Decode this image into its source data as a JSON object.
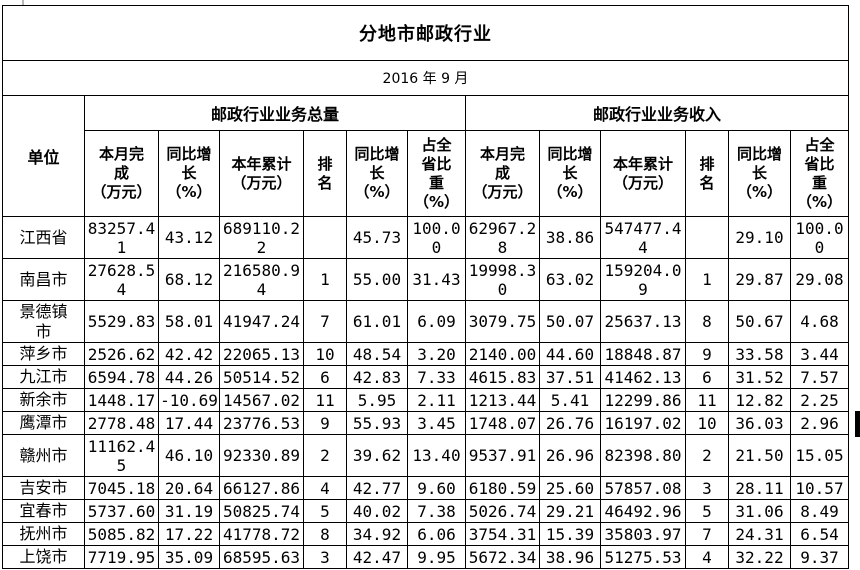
{
  "table": {
    "title": "分地市邮政行业",
    "period": "2016 年 9 月",
    "unit_column_header": "单位",
    "group_headers": [
      "邮政行业业务总量",
      "邮政行业业务收入"
    ],
    "sub_headers": [
      "本月完\n成\n（万元）",
      "同比增\n长\n（%）",
      "本年累计\n（万元）",
      "排\n名",
      "同比增\n长\n（%）",
      "占全\n省比\n重\n（%）"
    ],
    "rows": [
      {
        "name": "江西省",
        "volume": [
          "83257.41",
          "43.12",
          "689110.22",
          "",
          "45.73",
          "100.00"
        ],
        "revenue": [
          "62967.28",
          "38.86",
          "547477.44",
          "",
          "29.10",
          "100.00"
        ]
      },
      {
        "name": "南昌市",
        "volume": [
          "27628.54",
          "68.12",
          "216580.94",
          "1",
          "55.00",
          "31.43"
        ],
        "revenue": [
          "19998.30",
          "63.02",
          "159204.09",
          "1",
          "29.87",
          "29.08"
        ]
      },
      {
        "name": "景德镇市",
        "volume": [
          "5529.83",
          "58.01",
          "41947.24",
          "7",
          "61.01",
          "6.09"
        ],
        "revenue": [
          "3079.75",
          "50.07",
          "25637.13",
          "8",
          "50.67",
          "4.68"
        ]
      },
      {
        "name": "萍乡市",
        "volume": [
          "2526.62",
          "42.42",
          "22065.13",
          "10",
          "48.54",
          "3.20"
        ],
        "revenue": [
          "2140.00",
          "44.60",
          "18848.87",
          "9",
          "33.58",
          "3.44"
        ]
      },
      {
        "name": "九江市",
        "volume": [
          "6594.78",
          "44.26",
          "50514.52",
          "6",
          "42.83",
          "7.33"
        ],
        "revenue": [
          "4615.83",
          "37.51",
          "41462.13",
          "6",
          "31.52",
          "7.57"
        ]
      },
      {
        "name": "新余市",
        "volume": [
          "1448.17",
          "-10.69",
          "14567.02",
          "11",
          "5.95",
          "2.11"
        ],
        "revenue": [
          "1213.44",
          "5.41",
          "12299.86",
          "11",
          "12.82",
          "2.25"
        ]
      },
      {
        "name": "鹰潭市",
        "volume": [
          "2778.48",
          "17.44",
          "23776.53",
          "9",
          "55.93",
          "3.45"
        ],
        "revenue": [
          "1748.07",
          "26.76",
          "16197.02",
          "10",
          "36.03",
          "2.96"
        ]
      },
      {
        "name": "赣州市",
        "volume": [
          "11162.45",
          "46.10",
          "92330.89",
          "2",
          "39.62",
          "13.40"
        ],
        "revenue": [
          "9537.91",
          "26.96",
          "82398.80",
          "2",
          "21.50",
          "15.05"
        ]
      },
      {
        "name": "吉安市",
        "volume": [
          "7045.18",
          "20.64",
          "66127.86",
          "4",
          "42.77",
          "9.60"
        ],
        "revenue": [
          "6180.59",
          "25.60",
          "57857.08",
          "3",
          "28.11",
          "10.57"
        ]
      },
      {
        "name": "宜春市",
        "volume": [
          "5737.60",
          "31.19",
          "50825.74",
          "5",
          "40.02",
          "7.38"
        ],
        "revenue": [
          "5026.74",
          "29.21",
          "46492.96",
          "5",
          "31.06",
          "8.49"
        ]
      },
      {
        "name": "抚州市",
        "volume": [
          "5085.82",
          "17.22",
          "41778.72",
          "8",
          "34.92",
          "6.06"
        ],
        "revenue": [
          "3754.31",
          "15.39",
          "35803.97",
          "7",
          "24.31",
          "6.54"
        ]
      },
      {
        "name": "上饶市",
        "volume": [
          "7719.95",
          "35.09",
          "68595.63",
          "3",
          "42.47",
          "9.95"
        ],
        "revenue": [
          "5672.34",
          "38.96",
          "51275.53",
          "4",
          "32.22",
          "9.37"
        ]
      }
    ]
  },
  "decorations": {
    "scrollbar_fragment_color": "#000000",
    "gridline_remnant_color": "#b8b8b8",
    "border_color": "#000000",
    "background_color": "#ffffff"
  }
}
